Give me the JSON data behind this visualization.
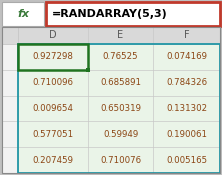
{
  "formula_bar_text": "=RANDARRAY(5,3)",
  "col_headers": [
    "D",
    "E",
    "F"
  ],
  "cell_data": [
    [
      "0.927298",
      "0.76525",
      "0.074169"
    ],
    [
      "0.710096",
      "0.685891",
      "0.784326"
    ],
    [
      "0.009654",
      "0.650319",
      "0.131302"
    ],
    [
      "0.577051",
      "0.59949",
      "0.190061"
    ],
    [
      "0.207459",
      "0.710076",
      "0.005165"
    ]
  ],
  "spill_fill": "#eaf4e8",
  "header_fill": "#d9d9d9",
  "stub_fill": "#f2f2f2",
  "outer_bg": "#c0c0c0",
  "white": "#ffffff",
  "formula_bar_border": "#c0392b",
  "fx_text_color": "#3a7a3a",
  "cell_text_color": "#8b4513",
  "header_text_color": "#595959",
  "grid_color": "#c8c8c8",
  "spill_border_color": "#2196a6",
  "d1_border_color": "#207320",
  "figure_width": 2.22,
  "figure_height": 1.75,
  "dpi": 100
}
